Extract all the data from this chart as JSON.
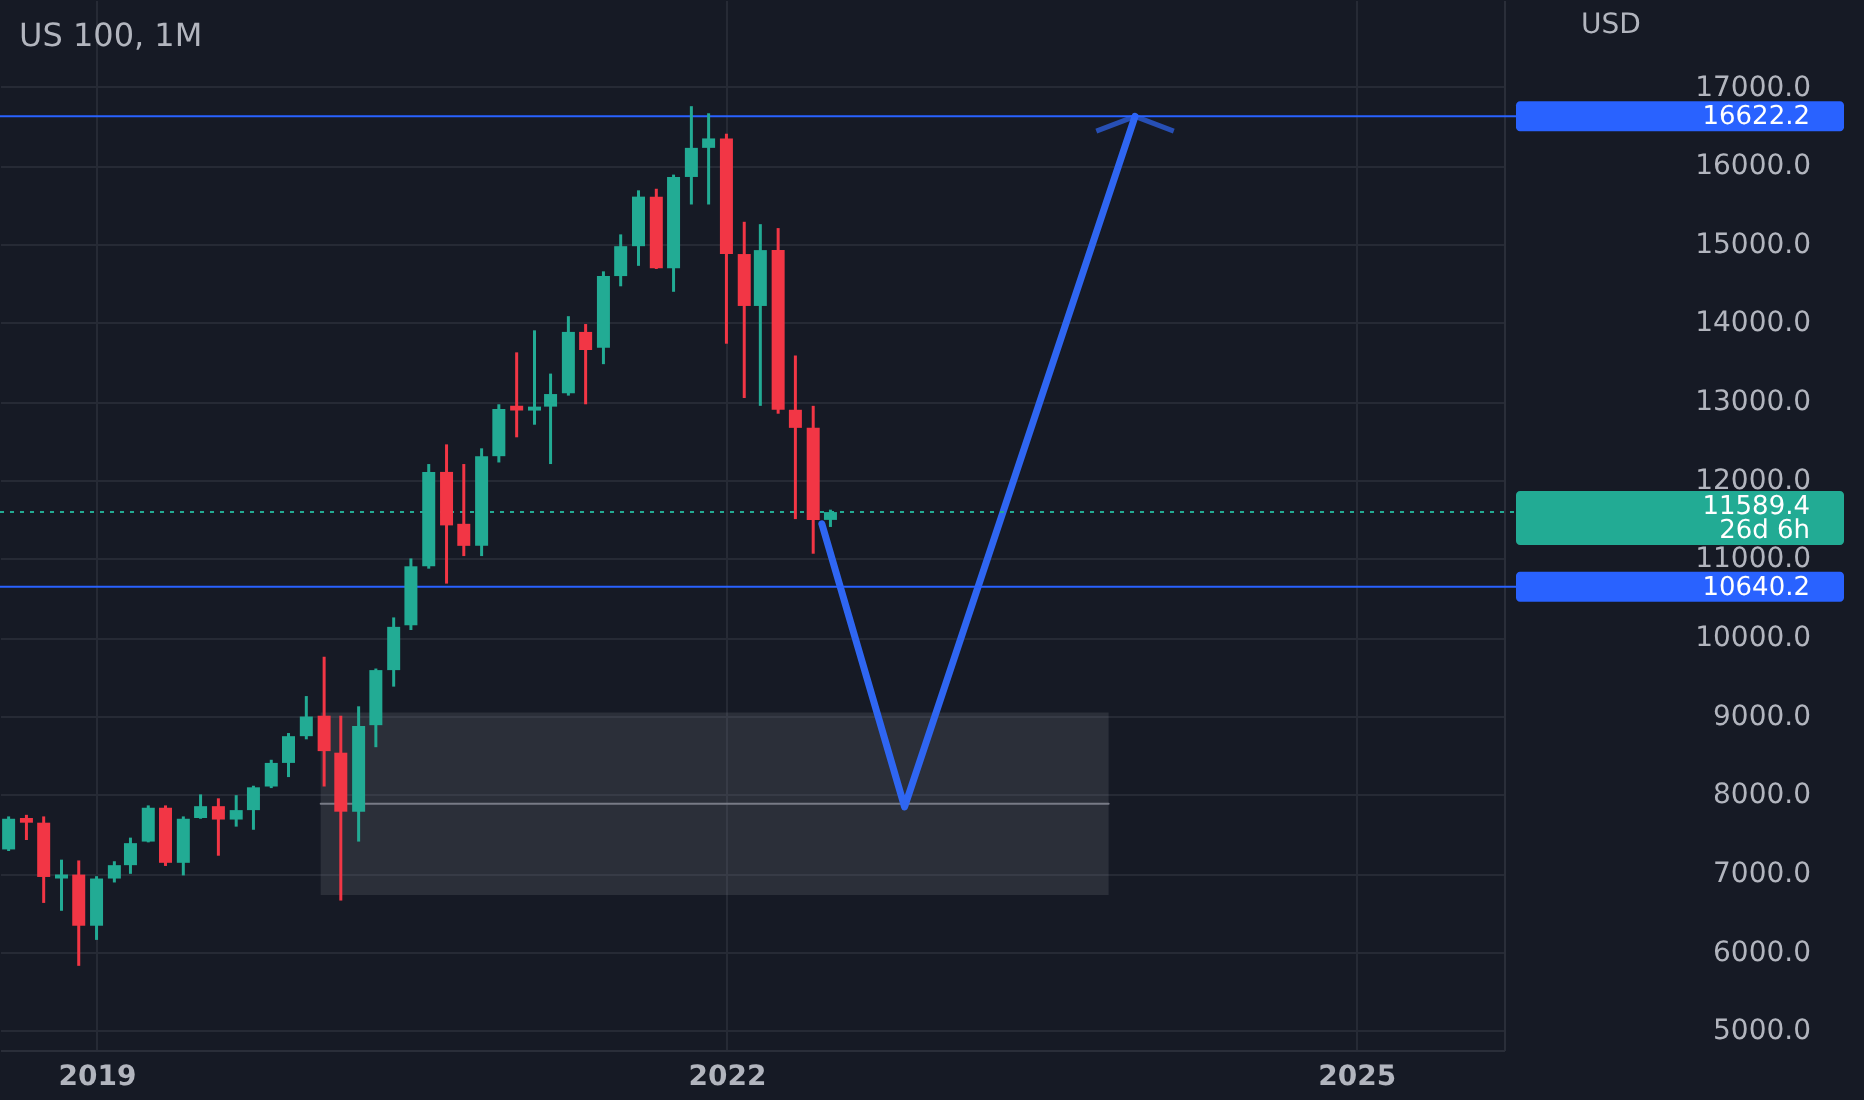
{
  "chart_data": {
    "type": "candlestick",
    "title": "US 100, 1M",
    "ylabel": "USD",
    "x": [
      "2018-08",
      "2018-09",
      "2018-10",
      "2018-11",
      "2018-12",
      "2019-01",
      "2019-02",
      "2019-03",
      "2019-04",
      "2019-05",
      "2019-06",
      "2019-07",
      "2019-08",
      "2019-09",
      "2019-10",
      "2019-11",
      "2019-12",
      "2020-01",
      "2020-02",
      "2020-03",
      "2020-04",
      "2020-05",
      "2020-06",
      "2020-07",
      "2020-08",
      "2020-09",
      "2020-10",
      "2020-11",
      "2020-12",
      "2021-01",
      "2021-02",
      "2021-03",
      "2021-04",
      "2021-05",
      "2021-06",
      "2021-07",
      "2021-08",
      "2021-09",
      "2021-10",
      "2021-11",
      "2021-12",
      "2022-01",
      "2022-02",
      "2022-03",
      "2022-04",
      "2022-05",
      "2022-06",
      "2022-07"
    ],
    "ohlc": [
      [
        7300,
        7720,
        7280,
        7690
      ],
      [
        7700,
        7740,
        7420,
        7640
      ],
      [
        7640,
        7720,
        6620,
        6950
      ],
      [
        6930,
        7170,
        6520,
        6980
      ],
      [
        6980,
        7160,
        5820,
        6330
      ],
      [
        6330,
        6960,
        6150,
        6930
      ],
      [
        6930,
        7150,
        6880,
        7100
      ],
      [
        7100,
        7450,
        6990,
        7380
      ],
      [
        7400,
        7860,
        7390,
        7830
      ],
      [
        7830,
        7860,
        7090,
        7130
      ],
      [
        7130,
        7720,
        6970,
        7690
      ],
      [
        7700,
        8000,
        7690,
        7850
      ],
      [
        7850,
        7950,
        7220,
        7680
      ],
      [
        7680,
        7990,
        7590,
        7800
      ],
      [
        7800,
        8110,
        7550,
        8090
      ],
      [
        8100,
        8440,
        8080,
        8400
      ],
      [
        8400,
        8780,
        8220,
        8740
      ],
      [
        8740,
        9250,
        8700,
        8990
      ],
      [
        9000,
        9750,
        8100,
        8550
      ],
      [
        8530,
        9000,
        6650,
        7780
      ],
      [
        7780,
        9120,
        7400,
        8870
      ],
      [
        8880,
        9600,
        8600,
        9580
      ],
      [
        9580,
        10250,
        9370,
        10130
      ],
      [
        10150,
        11000,
        10090,
        10900
      ],
      [
        10900,
        12200,
        10870,
        12100
      ],
      [
        12100,
        12450,
        10680,
        11420
      ],
      [
        11440,
        12200,
        11030,
        11160
      ],
      [
        11160,
        12400,
        11030,
        12300
      ],
      [
        12300,
        12960,
        12220,
        12900
      ],
      [
        12940,
        13620,
        12540,
        12880
      ],
      [
        12880,
        13900,
        12700,
        12930
      ],
      [
        12930,
        13350,
        12200,
        13090
      ],
      [
        13100,
        14080,
        13070,
        13880
      ],
      [
        13880,
        13980,
        12960,
        13650
      ],
      [
        13680,
        14650,
        13470,
        14590
      ],
      [
        14590,
        15120,
        14460,
        14970
      ],
      [
        14970,
        15680,
        14720,
        15600
      ],
      [
        15600,
        15700,
        14680,
        14690
      ],
      [
        14690,
        15880,
        14390,
        15850
      ],
      [
        15850,
        16750,
        15500,
        16220
      ],
      [
        16220,
        16660,
        15500,
        16340
      ],
      [
        16340,
        16400,
        13730,
        14870
      ],
      [
        14870,
        15280,
        13040,
        14210
      ],
      [
        14210,
        15250,
        12940,
        14920
      ],
      [
        14920,
        15200,
        12840,
        12890
      ],
      [
        12890,
        13580,
        11500,
        12660
      ],
      [
        12660,
        12940,
        11060,
        11490
      ],
      [
        11490,
        11620,
        11400,
        11589.4
      ]
    ],
    "colors": [
      "#22ab94",
      "#f23645",
      "#f23645",
      "#22ab94",
      "#f23645",
      "#22ab94",
      "#22ab94",
      "#22ab94",
      "#22ab94",
      "#f23645",
      "#22ab94",
      "#22ab94",
      "#f23645",
      "#22ab94",
      "#22ab94",
      "#22ab94",
      "#22ab94",
      "#22ab94",
      "#f23645",
      "#f23645",
      "#22ab94",
      "#22ab94",
      "#22ab94",
      "#22ab94",
      "#22ab94",
      "#f23645",
      "#f23645",
      "#22ab94",
      "#22ab94",
      "#f23645",
      "#22ab94",
      "#22ab94",
      "#22ab94",
      "#f23645",
      "#22ab94",
      "#22ab94",
      "#22ab94",
      "#f23645",
      "#22ab94",
      "#22ab94",
      "#22ab94",
      "#f23645",
      "#f23645",
      "#22ab94",
      "#f23645",
      "#f23645",
      "#f23645",
      "#22ab94"
    ],
    "series": [
      {
        "type": "line",
        "x": [
          "2020-01-26",
          "2023-10-28"
        ],
        "values": [
          7880,
          7880
        ],
        "lower": [
          6720,
          6720
        ],
        "upper": [
          9040,
          9040
        ],
        "color": "#787b86"
      },
      {
        "type": "line",
        "x": [
          "2022-06-16",
          "2022-11-07",
          "2023-12-13"
        ],
        "values": [
          11440,
          7840,
          16620
        ],
        "color": "#2f66f2"
      }
    ],
    "ref_lines": [
      {
        "axis": "y",
        "value": 16622.2,
        "label": "16622.2",
        "color": "#2962ff"
      },
      {
        "axis": "y",
        "value": 10640.2,
        "label": "10640.2",
        "color": "#2962ff"
      },
      {
        "axis": "y",
        "value": 11589.4,
        "label": "11589.4\n26d 6h",
        "color": "#22ab94",
        "line_style": "dotted"
      }
    ],
    "xlim": [
      "2018-07-17",
      "2025-09-15"
    ],
    "xticks": [
      "2019",
      "2022",
      "2025"
    ],
    "ylim": [
      4750,
      18100
    ],
    "yticks": [
      {
        "value": 5000,
        "label": "5000.0"
      },
      {
        "value": 6000,
        "label": "6000.0"
      },
      {
        "value": 7000,
        "label": "7000.0"
      },
      {
        "value": 8000,
        "label": "8000.0"
      },
      {
        "value": 9000,
        "label": "9000.0"
      },
      {
        "value": 10000,
        "label": "10000.0"
      },
      {
        "value": 11000,
        "label": "11000.0"
      },
      {
        "value": 12000,
        "label": "12000.0"
      },
      {
        "value": 13000,
        "label": "13000.0"
      },
      {
        "value": 14000,
        "label": "14000.0"
      },
      {
        "value": 15000,
        "label": "15000.0"
      },
      {
        "value": 16000,
        "label": "16000.0"
      },
      {
        "value": 17000,
        "label": "17000.0"
      }
    ],
    "grid": true
  }
}
